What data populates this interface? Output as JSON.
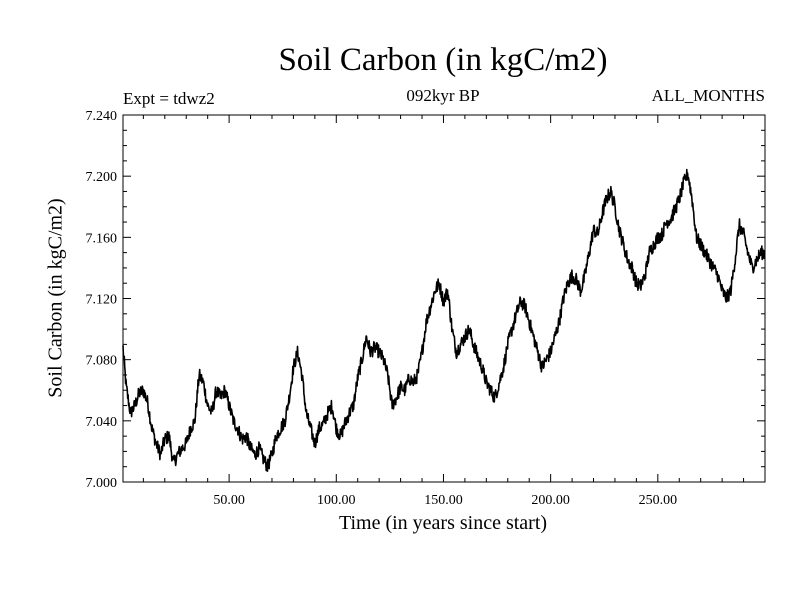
{
  "chart_data": {
    "type": "line",
    "title": "Soil Carbon (in kgC/m2)",
    "subtitle": "092kyr BP",
    "left_label": "Expt = tdwz2",
    "right_label": "ALL_MONTHS",
    "xlabel": "Time (in years since start)",
    "ylabel": "Soil Carbon (in kgC/m2)",
    "xlim": [
      0.5,
      300
    ],
    "ylim": [
      7.0,
      7.24
    ],
    "xticks": [
      50,
      100,
      150,
      200,
      250
    ],
    "xtick_labels": [
      "50.00",
      "100.00",
      "150.00",
      "200.00",
      "250.00"
    ],
    "yticks": [
      7.0,
      7.04,
      7.08,
      7.12,
      7.16,
      7.2,
      7.24
    ],
    "ytick_labels": [
      "7.000",
      "7.040",
      "7.080",
      "7.120",
      "7.160",
      "7.200",
      "7.240"
    ],
    "series": [
      {
        "name": "Soil Carbon",
        "color": "#000000",
        "x": [
          0.5,
          2,
          4,
          6,
          8,
          10,
          12,
          14,
          16,
          18,
          20,
          22,
          24,
          26,
          28,
          30,
          32,
          34,
          36,
          38,
          40,
          42,
          44,
          46,
          48,
          50,
          52,
          54,
          56,
          58,
          60,
          62,
          64,
          66,
          68,
          70,
          72,
          74,
          76,
          78,
          80,
          82,
          84,
          86,
          88,
          90,
          92,
          94,
          96,
          98,
          100,
          102,
          104,
          106,
          108,
          110,
          112,
          114,
          116,
          118,
          120,
          122,
          124,
          126,
          128,
          130,
          132,
          134,
          136,
          138,
          140,
          142,
          144,
          146,
          148,
          150,
          152,
          154,
          156,
          158,
          160,
          162,
          164,
          166,
          168,
          170,
          172,
          174,
          176,
          178,
          180,
          182,
          184,
          186,
          188,
          190,
          192,
          194,
          196,
          198,
          200,
          202,
          204,
          206,
          208,
          210,
          212,
          214,
          216,
          218,
          220,
          222,
          224,
          226,
          228,
          230,
          232,
          234,
          236,
          238,
          240,
          242,
          244,
          246,
          248,
          250,
          252,
          254,
          256,
          258,
          260,
          262,
          264,
          266,
          268,
          270,
          272,
          274,
          276,
          278,
          280,
          282,
          284,
          286,
          288,
          290,
          292,
          294,
          296,
          298,
          300
        ],
        "values": [
          7.088,
          7.062,
          7.045,
          7.05,
          7.058,
          7.06,
          7.052,
          7.035,
          7.025,
          7.018,
          7.028,
          7.03,
          7.012,
          7.018,
          7.022,
          7.025,
          7.035,
          7.04,
          7.07,
          7.065,
          7.05,
          7.045,
          7.06,
          7.055,
          7.06,
          7.05,
          7.04,
          7.035,
          7.028,
          7.03,
          7.022,
          7.018,
          7.022,
          7.015,
          7.01,
          7.018,
          7.03,
          7.035,
          7.04,
          7.055,
          7.075,
          7.085,
          7.07,
          7.045,
          7.035,
          7.025,
          7.035,
          7.038,
          7.045,
          7.05,
          7.035,
          7.03,
          7.038,
          7.045,
          7.05,
          7.068,
          7.08,
          7.095,
          7.085,
          7.088,
          7.085,
          7.08,
          7.07,
          7.05,
          7.055,
          7.062,
          7.06,
          7.068,
          7.065,
          7.07,
          7.085,
          7.105,
          7.115,
          7.125,
          7.13,
          7.118,
          7.125,
          7.1,
          7.085,
          7.09,
          7.095,
          7.1,
          7.09,
          7.082,
          7.075,
          7.065,
          7.06,
          7.055,
          7.065,
          7.075,
          7.09,
          7.1,
          7.11,
          7.118,
          7.115,
          7.105,
          7.095,
          7.085,
          7.075,
          7.08,
          7.085,
          7.095,
          7.105,
          7.12,
          7.13,
          7.135,
          7.132,
          7.125,
          7.135,
          7.15,
          7.165,
          7.162,
          7.175,
          7.185,
          7.19,
          7.18,
          7.165,
          7.155,
          7.145,
          7.14,
          7.13,
          7.128,
          7.135,
          7.15,
          7.155,
          7.16,
          7.162,
          7.17,
          7.172,
          7.178,
          7.185,
          7.195,
          7.202,
          7.185,
          7.16,
          7.155,
          7.15,
          7.145,
          7.14,
          7.135,
          7.125,
          7.12,
          7.125,
          7.145,
          7.168,
          7.162,
          7.15,
          7.14,
          7.145,
          7.15,
          7.15
        ]
      }
    ]
  }
}
